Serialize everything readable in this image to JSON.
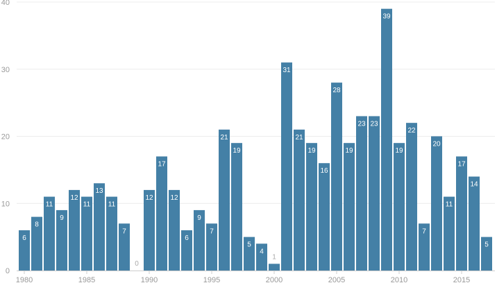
{
  "chart_data": {
    "type": "bar",
    "title": "",
    "xlabel": "",
    "ylabel": "",
    "categories": [
      1980,
      1981,
      1982,
      1983,
      1984,
      1985,
      1986,
      1987,
      1988,
      1989,
      1990,
      1991,
      1992,
      1993,
      1994,
      1995,
      1996,
      1997,
      1998,
      1999,
      2000,
      2001,
      2002,
      2003,
      2004,
      2005,
      2006,
      2007,
      2008,
      2009,
      2010,
      2011,
      2012,
      2013,
      2014,
      2015,
      2016,
      2017
    ],
    "values": [
      6,
      8,
      11,
      9,
      12,
      11,
      13,
      11,
      7,
      0,
      12,
      17,
      12,
      6,
      9,
      7,
      21,
      19,
      5,
      4,
      1,
      31,
      21,
      19,
      16,
      28,
      19,
      23,
      23,
      39,
      19,
      22,
      7,
      20,
      11,
      17,
      14,
      5
    ],
    "ylim": [
      0,
      40
    ],
    "yticks": [
      0,
      10,
      20,
      30,
      40
    ],
    "xticks": [
      1980,
      1985,
      1990,
      1995,
      2000,
      2005,
      2010,
      2015
    ],
    "grid": true,
    "colors": {
      "bar": "#4480a6",
      "label": "#ffffff",
      "label_outside": "#aaaaaa",
      "tick_text": "#999999",
      "grid": "#ececec"
    }
  }
}
